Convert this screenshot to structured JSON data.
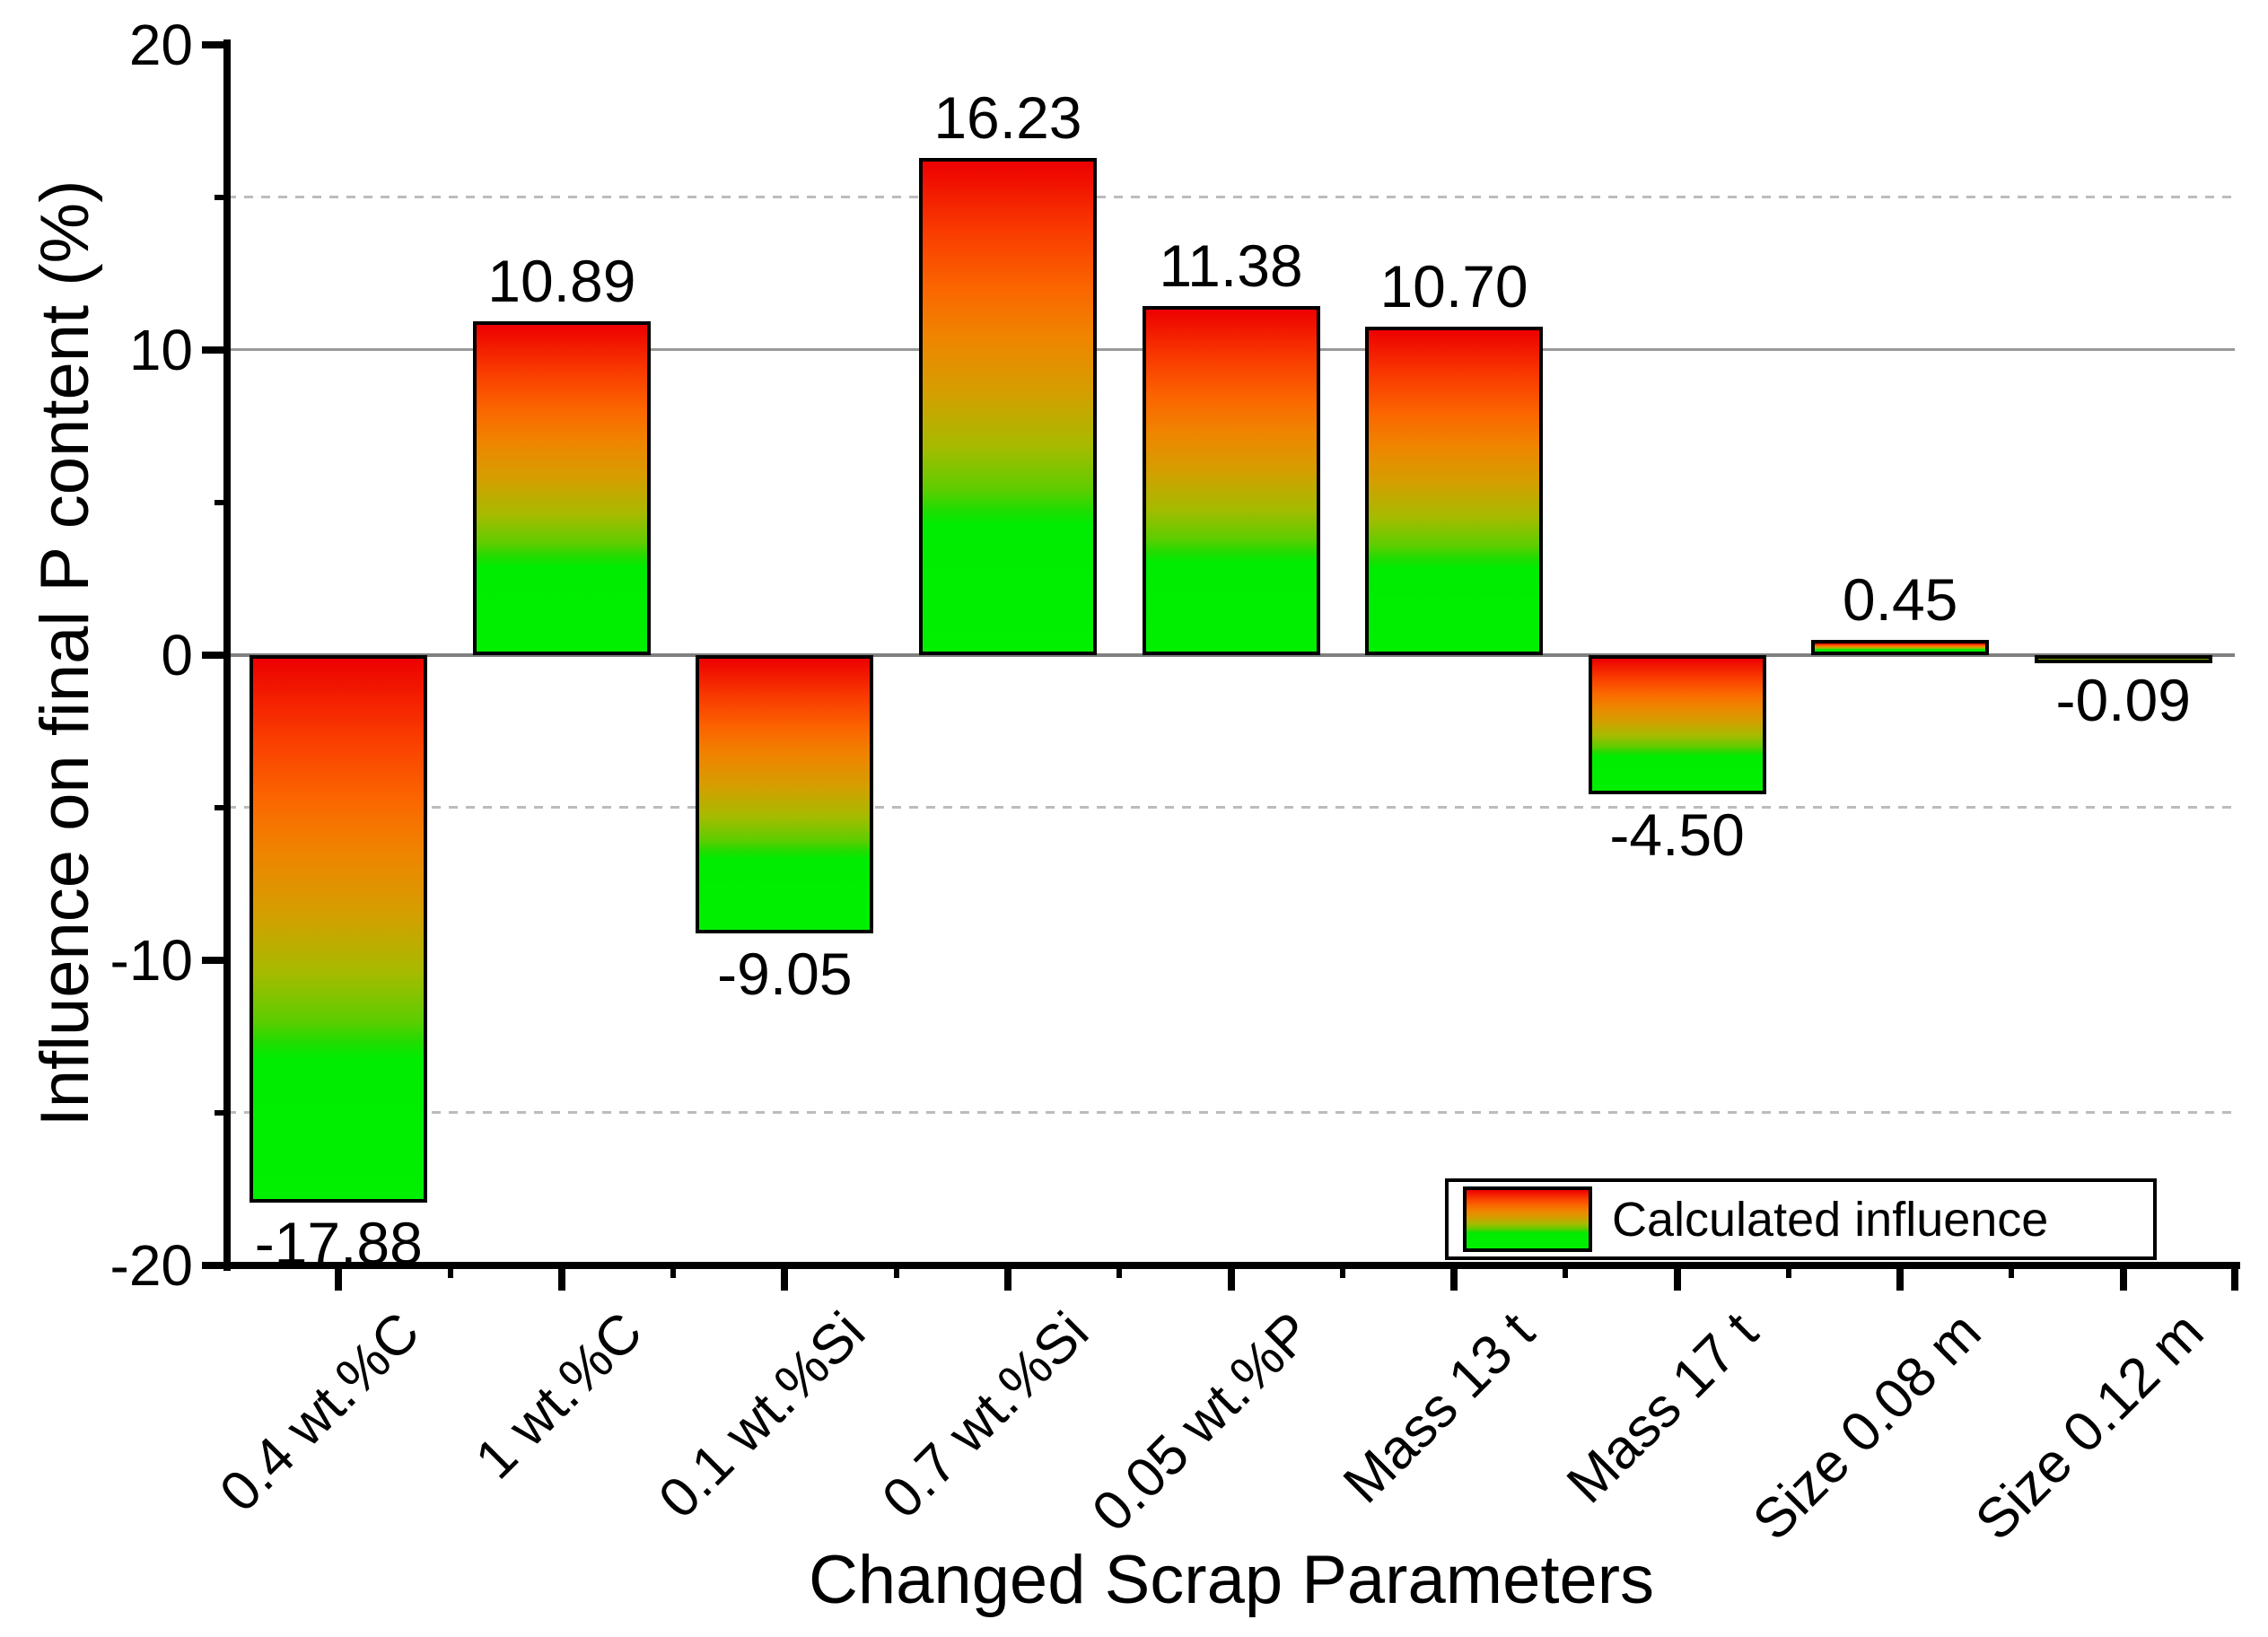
{
  "figure": {
    "y_axis_title": "Influence on final P content (%)",
    "x_axis_title": "Changed Scrap Parameters",
    "legend_label": "Calculated influence"
  },
  "chart_data": {
    "type": "bar",
    "title": "",
    "xlabel": "Changed Scrap Parameters",
    "ylabel": "Influence on final P content (%)",
    "categories": [
      "0.4 wt.%C",
      "1 wt.%C",
      "0.1 wt.%Si",
      "0.7 wt.%Si",
      "0.05 wt.%P",
      "Mass 13 t",
      "Mass 17 t",
      "Size 0.08 m",
      "Size 0.12 m"
    ],
    "values": [
      -17.88,
      10.89,
      -9.05,
      16.23,
      11.38,
      10.7,
      -4.5,
      0.45,
      -0.09
    ],
    "value_labels": [
      "-17.88",
      "10.89",
      "-9.05",
      "16.23",
      "11.38",
      "10.70",
      "-4.50",
      "0.45",
      "-0.09"
    ],
    "ylim": [
      -20,
      20
    ],
    "y_major_ticks": [
      20,
      10,
      0,
      -10,
      -20
    ],
    "y_tick_labels": [
      "20",
      "10",
      "0",
      "-10",
      "-20"
    ],
    "y_minor_ticks": [
      15,
      5,
      -5,
      -15
    ],
    "gridlines": [
      {
        "value": 15,
        "style": "dashed"
      },
      {
        "value": 10,
        "style": "solid"
      },
      {
        "value": 0,
        "style": "zero"
      },
      {
        "value": -5,
        "style": "dashed"
      },
      {
        "value": -15,
        "style": "dashed"
      }
    ],
    "x_tick_rotation_deg": 45,
    "legend": {
      "label": "Calculated influence",
      "position": "bottom-right"
    },
    "bar_gradient_stops": [
      "#ed0000 0%",
      "#f93a00 14%",
      "#fb6600 26%",
      "#ef8500 36%",
      "#d59e00 47%",
      "#a7ba00 58%",
      "#5ecd00 67%",
      "#21dc00 71%",
      "#00ec00 74%",
      "#00f000 100%"
    ],
    "colors": {
      "bar_border": "#000000",
      "axis": "#000000",
      "text": "#000000",
      "grid_dashed": "#bcbcbc",
      "grid_solid": "#999999",
      "zero_line": "#808080",
      "background": "#ffffff"
    }
  }
}
